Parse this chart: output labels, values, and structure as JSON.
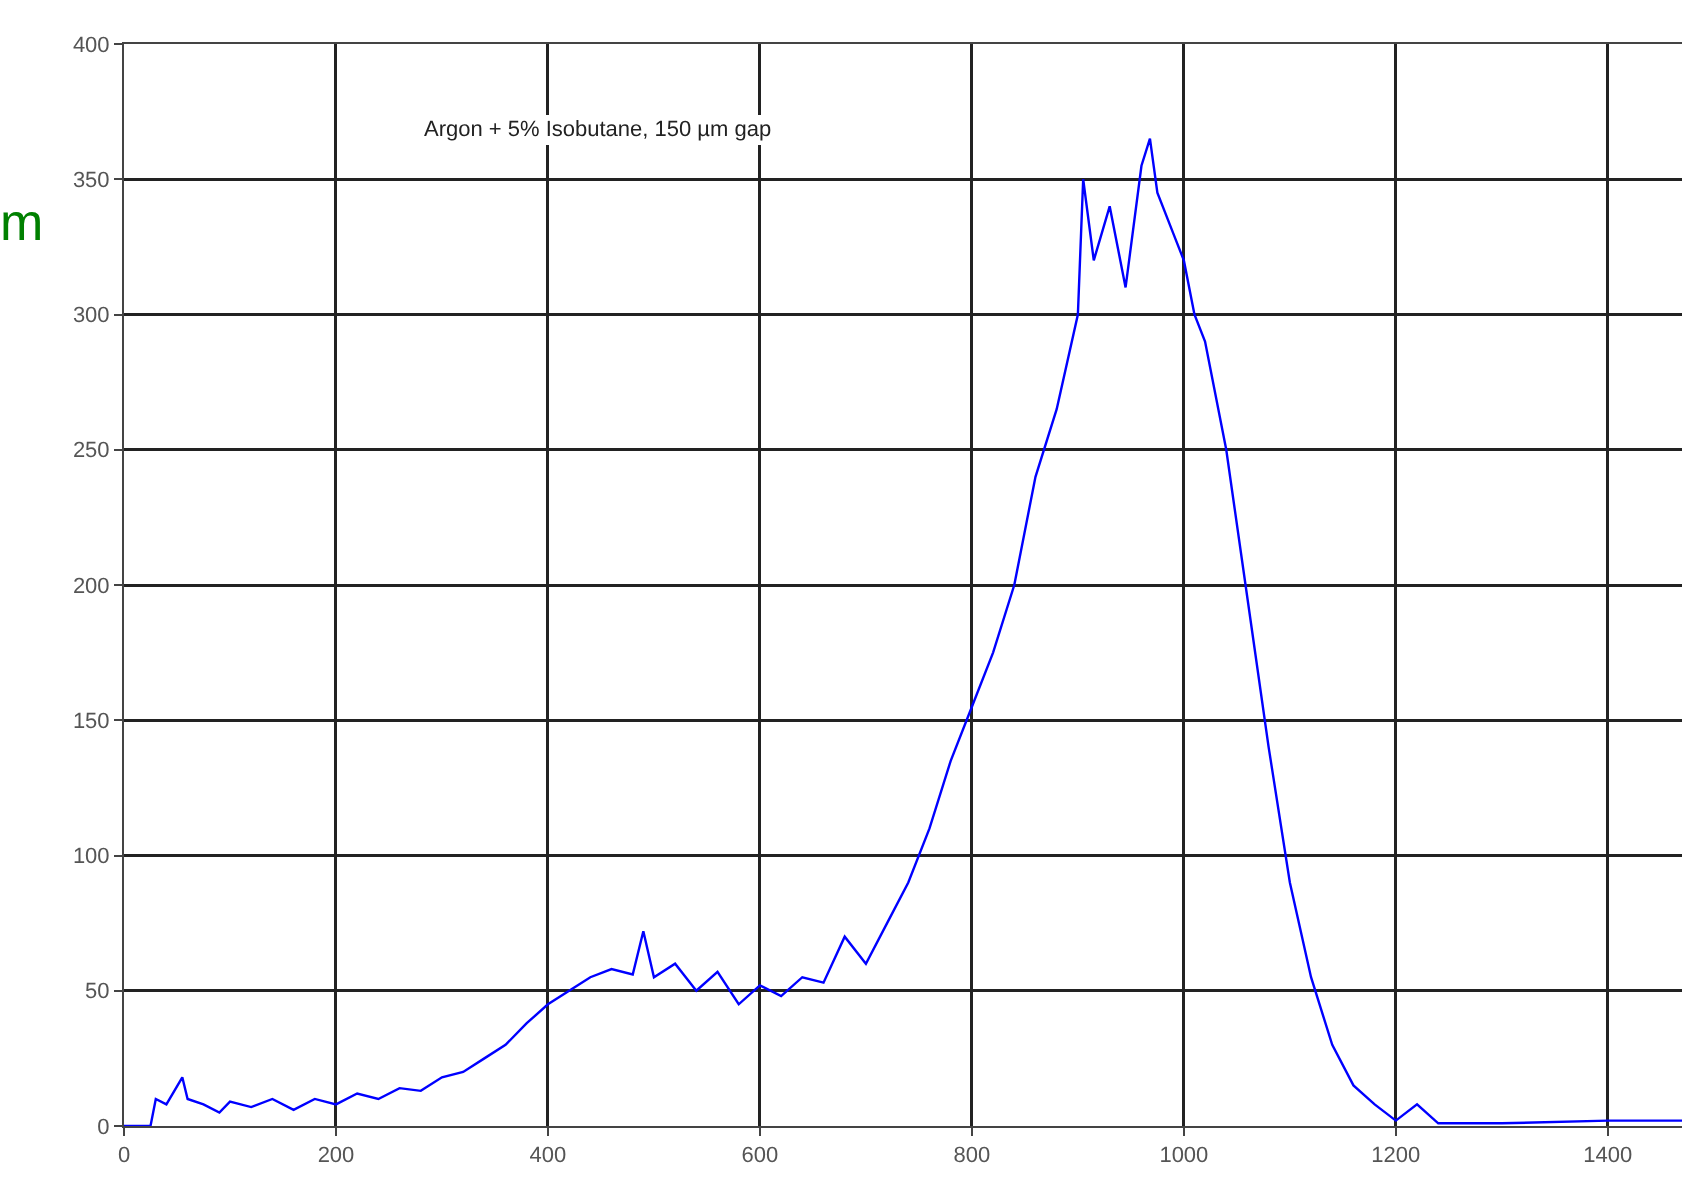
{
  "chart_data": {
    "type": "line",
    "annotations": [
      "Argon + 5% Isobutane, 150 µm gap",
      "m"
    ],
    "x": [
      0,
      25,
      30,
      40,
      55,
      60,
      75,
      90,
      100,
      120,
      140,
      160,
      180,
      200,
      220,
      240,
      260,
      280,
      300,
      320,
      340,
      360,
      380,
      400,
      420,
      440,
      460,
      480,
      490,
      500,
      520,
      540,
      560,
      580,
      600,
      620,
      640,
      660,
      680,
      700,
      720,
      740,
      760,
      780,
      800,
      820,
      840,
      860,
      880,
      900,
      905,
      915,
      930,
      945,
      960,
      968,
      975,
      990,
      1000,
      1010,
      1020,
      1040,
      1060,
      1080,
      1100,
      1120,
      1140,
      1160,
      1180,
      1200,
      1220,
      1240,
      1300,
      1400,
      1470
    ],
    "series": [
      {
        "color": "#0000ff",
        "values": [
          0,
          0,
          10,
          8,
          18,
          10,
          8,
          5,
          9,
          7,
          10,
          6,
          10,
          8,
          12,
          10,
          14,
          13,
          18,
          20,
          25,
          30,
          38,
          45,
          50,
          55,
          58,
          56,
          72,
          55,
          60,
          50,
          57,
          45,
          52,
          48,
          55,
          53,
          70,
          60,
          75,
          90,
          110,
          135,
          155,
          175,
          200,
          240,
          265,
          300,
          350,
          320,
          340,
          310,
          355,
          365,
          345,
          330,
          320,
          300,
          290,
          250,
          195,
          140,
          90,
          55,
          30,
          15,
          8,
          2,
          8,
          1,
          1,
          2,
          2
        ]
      }
    ],
    "xlim": [
      0,
      1470
    ],
    "ylim": [
      0,
      400
    ],
    "xticks": [
      0,
      200,
      400,
      600,
      800,
      1000,
      1200,
      1400
    ],
    "yticks": [
      0,
      50,
      100,
      150,
      200,
      250,
      300,
      350,
      400
    ],
    "grid": true,
    "marker": "none",
    "line_style": "solid"
  }
}
